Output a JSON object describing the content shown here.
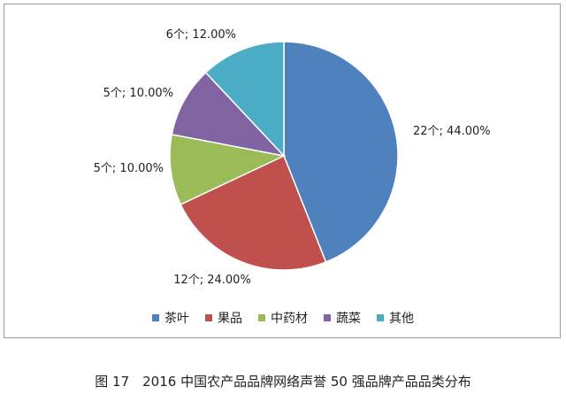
{
  "chart_data": {
    "type": "pie",
    "categories": [
      "茶叶",
      "果品",
      "中药材",
      "蔬菜",
      "其他"
    ],
    "values": [
      22,
      12,
      5,
      5,
      6
    ],
    "percents": [
      44.0,
      24.0,
      10.0,
      10.0,
      12.0
    ],
    "labels": [
      "22个; 44.00%",
      "12个; 24.00%",
      "5个; 10.00%",
      "5个; 10.00%",
      "6个; 12.00%"
    ],
    "colors": [
      "#4f81bd",
      "#c0504d",
      "#9bbb59",
      "#8064a2",
      "#4bacc6"
    ],
    "legend_position": "bottom",
    "start_angle": "12 o'clock",
    "direction": "clockwise"
  },
  "caption": "图 17　2016 中国农产品品牌网络声誉 50 强品牌产品品类分布"
}
